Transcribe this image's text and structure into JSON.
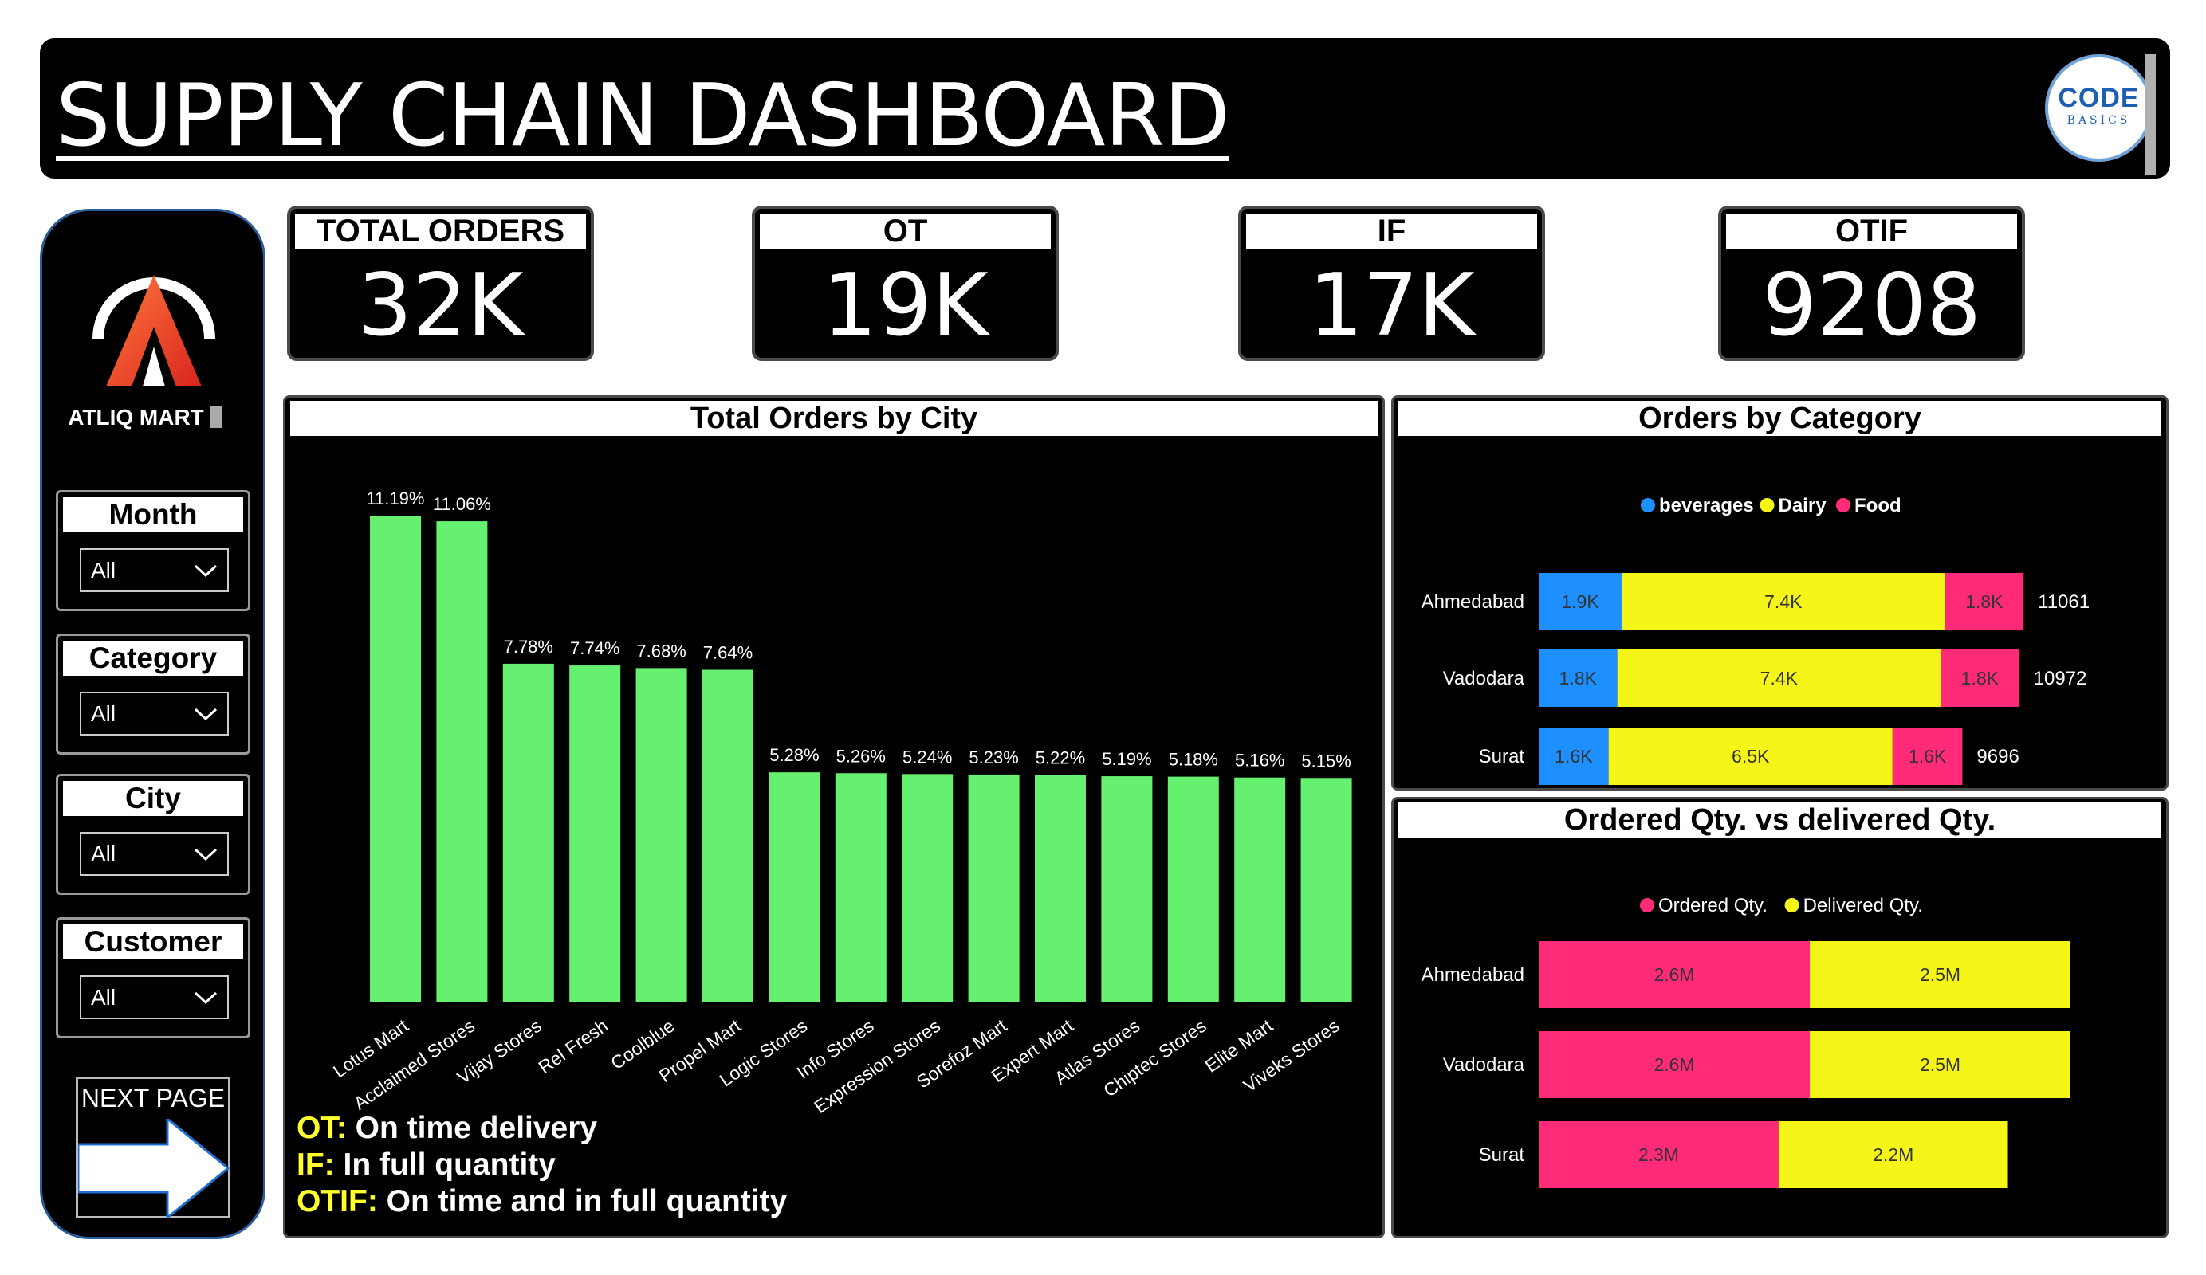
{
  "header": {
    "title": "SUPPLY CHAIN DASHBOARD",
    "brand_main": "CODE",
    "brand_sub": "BASICS"
  },
  "sidebar": {
    "company": "ATLIQ MART",
    "filters": [
      {
        "label": "Month",
        "value": "All"
      },
      {
        "label": "Category",
        "value": "All"
      },
      {
        "label": "City",
        "value": "All"
      },
      {
        "label": "Customer",
        "value": "All"
      }
    ],
    "next_page": "NEXT PAGE"
  },
  "kpis": [
    {
      "label": "TOTAL ORDERS",
      "value": "32K"
    },
    {
      "label": "OT",
      "value": "19K"
    },
    {
      "label": "IF",
      "value": "17K"
    },
    {
      "label": "OTIF",
      "value": "9208"
    }
  ],
  "notes": [
    {
      "key": "OT:",
      "text": " On time delivery"
    },
    {
      "key": "IF:",
      "text": " In full quantity"
    },
    {
      "key": "OTIF:",
      "text": " On time and in full quantity"
    }
  ],
  "colors": {
    "green": "#66f06f",
    "blue": "#1e8fff",
    "yellow": "#f5f518",
    "pink": "#ff2a78"
  },
  "chart_data": [
    {
      "type": "bar",
      "title": "Total Orders by City",
      "categories": [
        "Lotus Mart",
        "Acclaimed Stores",
        "Vijay Stores",
        "Rel Fresh",
        "Coolblue",
        "Propel Mart",
        "Logic Stores",
        "Info Stores",
        "Expression Stores",
        "Sorefoz Mart",
        "Expert Mart",
        "Atlas Stores",
        "Chiptec Stores",
        "Elite Mart",
        "Viveks Stores"
      ],
      "values": [
        11.19,
        11.06,
        7.78,
        7.74,
        7.68,
        7.64,
        5.28,
        5.26,
        5.24,
        5.23,
        5.22,
        5.19,
        5.18,
        5.16,
        5.15
      ],
      "labels": [
        "11.19%",
        "11.06%",
        "7.78%",
        "7.74%",
        "7.68%",
        "7.64%",
        "5.28%",
        "5.26%",
        "5.24%",
        "5.23%",
        "5.22%",
        "5.19%",
        "5.18%",
        "5.16%",
        "5.15%"
      ],
      "unit": "%"
    },
    {
      "type": "bar",
      "orientation": "horizontal",
      "stacked": true,
      "title": "Orders by Category",
      "categories": [
        "Ahmedabad",
        "Vadodara",
        "Surat"
      ],
      "series": [
        {
          "name": "beverages",
          "values": [
            1900,
            1800,
            1600
          ],
          "labels": [
            "1.9K",
            "1.8K",
            "1.6K"
          ]
        },
        {
          "name": "Dairy",
          "values": [
            7400,
            7400,
            6500
          ],
          "labels": [
            "7.4K",
            "7.4K",
            "6.5K"
          ]
        },
        {
          "name": "Food",
          "values": [
            1800,
            1800,
            1600
          ],
          "labels": [
            "1.8K",
            "1.8K",
            "1.6K"
          ]
        }
      ],
      "totals": [
        "11061",
        "10972",
        "9696"
      ],
      "total_values": [
        11061,
        10972,
        9696
      ],
      "legend_position": "top"
    },
    {
      "type": "bar",
      "orientation": "horizontal",
      "stacked": true,
      "title": "Ordered Qty. vs delivered Qty.",
      "categories": [
        "Ahmedabad",
        "Vadodara",
        "Surat"
      ],
      "series": [
        {
          "name": "Ordered Qty.",
          "values": [
            2.6,
            2.6,
            2.3
          ],
          "labels": [
            "2.6M",
            "2.6M",
            "2.3M"
          ]
        },
        {
          "name": "Delivered Qty.",
          "values": [
            2.5,
            2.5,
            2.2
          ],
          "labels": [
            "2.5M",
            "2.5M",
            "2.2M"
          ]
        }
      ],
      "unit": "M",
      "legend_position": "top"
    }
  ]
}
